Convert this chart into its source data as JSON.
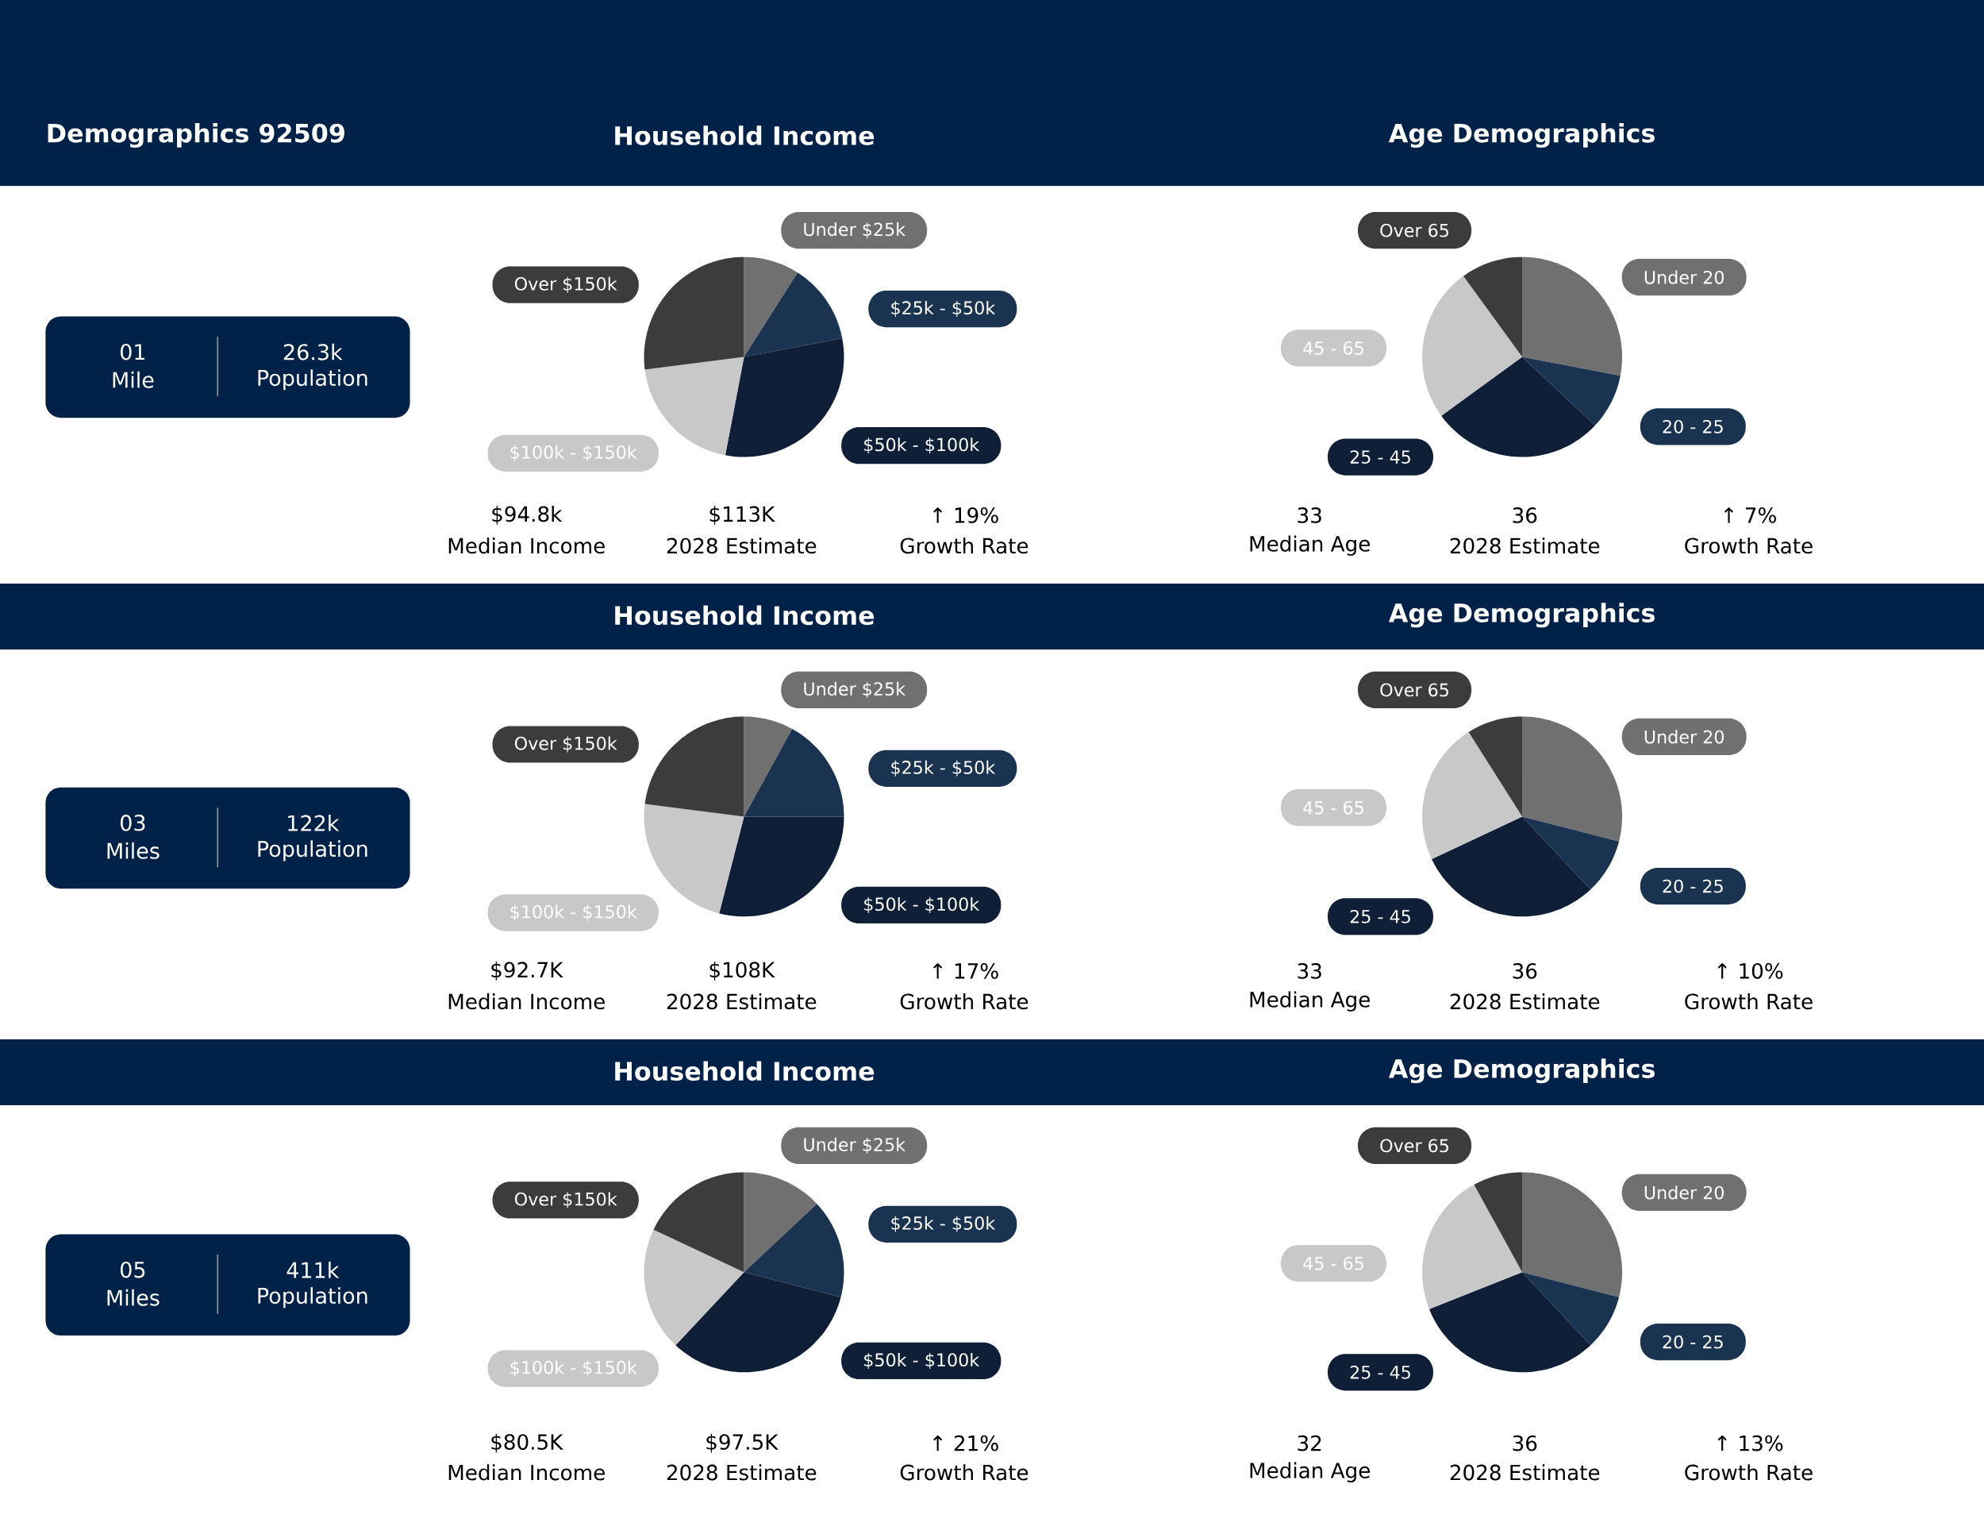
{
  "chart_data": [
    {
      "type": "other",
      "title": "Demographics 92509",
      "annotations": [
        "01",
        "Mile",
        "26.3k",
        "Population"
      ]
    },
    {
      "type": "pie",
      "title": "Household Income",
      "categories": [
        "Under $25k",
        "$25k - $50k",
        "$50k - $100k",
        "$100k - $150k",
        "Over $150k"
      ],
      "values": [
        9,
        13,
        31,
        20,
        27
      ],
      "colors": [
        "#707070",
        "#1a3350",
        "#0f1f38",
        "#c8c8c8",
        "#3c3c3c"
      ],
      "annotations": [
        "$94.8k",
        "Median Income",
        "$113K",
        "2028 Estimate",
        "↑ 19%",
        "Growth Rate"
      ]
    },
    {
      "type": "pie",
      "title": "Age Demographics",
      "categories": [
        "Under 20",
        "20 - 25",
        "25 - 45",
        "45 - 65",
        "Over 65"
      ],
      "values": [
        28,
        9,
        28,
        25,
        10
      ],
      "colors": [
        "#707070",
        "#1a3350",
        "#0f1f38",
        "#c8c8c8",
        "#3c3c3c"
      ],
      "annotations": [
        "33",
        "Median Age",
        "36",
        "2028 Estimate",
        "↑ 7%",
        "Growth Rate"
      ]
    },
    {
      "type": "other",
      "annotations": [
        "03",
        "Miles",
        "122k",
        "Population"
      ]
    },
    {
      "type": "pie",
      "title": "Household Income",
      "categories": [
        "Under $25k",
        "$25k - $50k",
        "$50k - $100k",
        "$100k - $150k",
        "Over $150k"
      ],
      "values": [
        8,
        17,
        29,
        23,
        23
      ],
      "colors": [
        "#707070",
        "#1a3350",
        "#0f1f38",
        "#c8c8c8",
        "#3c3c3c"
      ],
      "annotations": [
        "$92.7K",
        "Median Income",
        "$108K",
        "2028 Estimate",
        "↑ 17%",
        "Growth Rate"
      ]
    },
    {
      "type": "pie",
      "title": "Age Demographics",
      "categories": [
        "Under 20",
        "20 - 25",
        "25 - 45",
        "45 - 65",
        "Over 65"
      ],
      "values": [
        29,
        9,
        30,
        23,
        9
      ],
      "colors": [
        "#707070",
        "#1a3350",
        "#0f1f38",
        "#c8c8c8",
        "#3c3c3c"
      ],
      "annotations": [
        "33",
        "Median Age",
        "36",
        "2028 Estimate",
        "↑ 10%",
        "Growth Rate"
      ]
    },
    {
      "type": "other",
      "annotations": [
        "05",
        "Miles",
        "411k",
        "Population"
      ]
    },
    {
      "type": "pie",
      "title": "Household Income",
      "categories": [
        "Under $25k",
        "$25k - $50k",
        "$50k - $100k",
        "$100k - $150k",
        "Over $150k"
      ],
      "values": [
        13,
        16,
        33,
        20,
        18
      ],
      "colors": [
        "#707070",
        "#1a3350",
        "#0f1f38",
        "#c8c8c8",
        "#3c3c3c"
      ],
      "annotations": [
        "$80.5K",
        "Median Income",
        "$97.5K",
        "2028 Estimate",
        "↑ 21%",
        "Growth Rate"
      ]
    },
    {
      "type": "pie",
      "title": "Age Demographics",
      "categories": [
        "Under 20",
        "20 - 25",
        "25 - 45",
        "45 - 65",
        "Over 65"
      ],
      "values": [
        29,
        9,
        31,
        23,
        8
      ],
      "colors": [
        "#707070",
        "#1a3350",
        "#0f1f38",
        "#c8c8c8",
        "#3c3c3c"
      ],
      "annotations": [
        "32",
        "Median Age",
        "36",
        "2028 Estimate",
        "↑ 13%",
        "Growth Rate"
      ]
    }
  ]
}
